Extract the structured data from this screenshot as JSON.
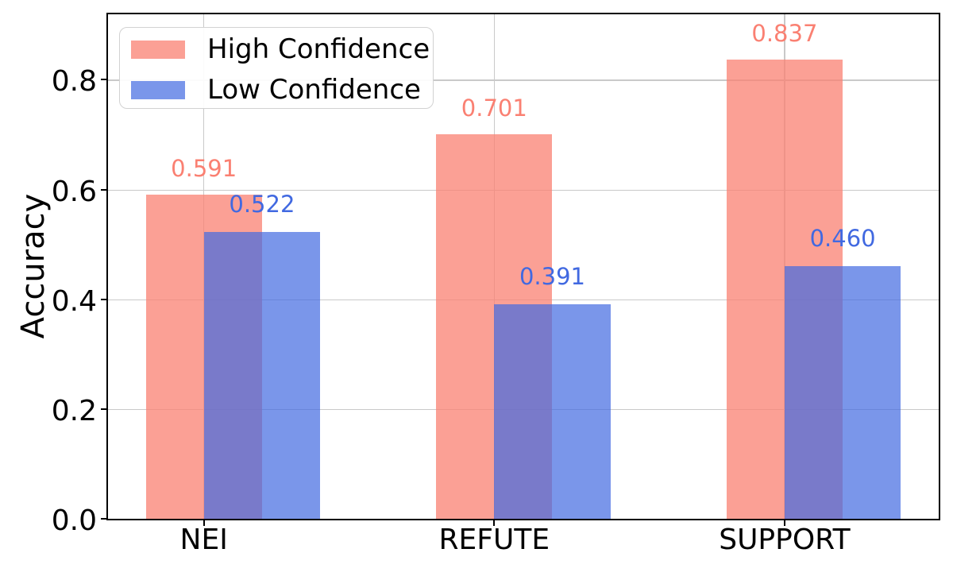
{
  "chart_data": {
    "type": "bar",
    "title": "",
    "xlabel": "",
    "ylabel": "Accuracy",
    "categories": [
      "NEI",
      "REFUTE",
      "SUPPORT"
    ],
    "series": [
      {
        "name": "High Confidence",
        "values": [
          0.591,
          0.701,
          0.837
        ],
        "value_labels": [
          "0.591",
          "0.701",
          "0.837"
        ],
        "color": "#FA8072",
        "alpha": 0.75,
        "label_color": "#FA8072"
      },
      {
        "name": "Low Confidence",
        "values": [
          0.522,
          0.391,
          0.46
        ],
        "value_labels": [
          "0.522",
          "0.391",
          "0.460"
        ],
        "color": "#4169E1",
        "alpha": 0.7,
        "label_color": "#4169E1"
      }
    ],
    "yticks": {
      "labels": [
        "0.0",
        "0.2",
        "0.4",
        "0.6",
        "0.8"
      ],
      "values": [
        0,
        0.2,
        0.4,
        0.6,
        0.8
      ]
    },
    "ylim": [
      0,
      0.9192
    ],
    "grid": "both",
    "grid_color": "#C9C9C9",
    "spine_color": "#000000",
    "legend": {
      "position": "upper-left"
    }
  }
}
